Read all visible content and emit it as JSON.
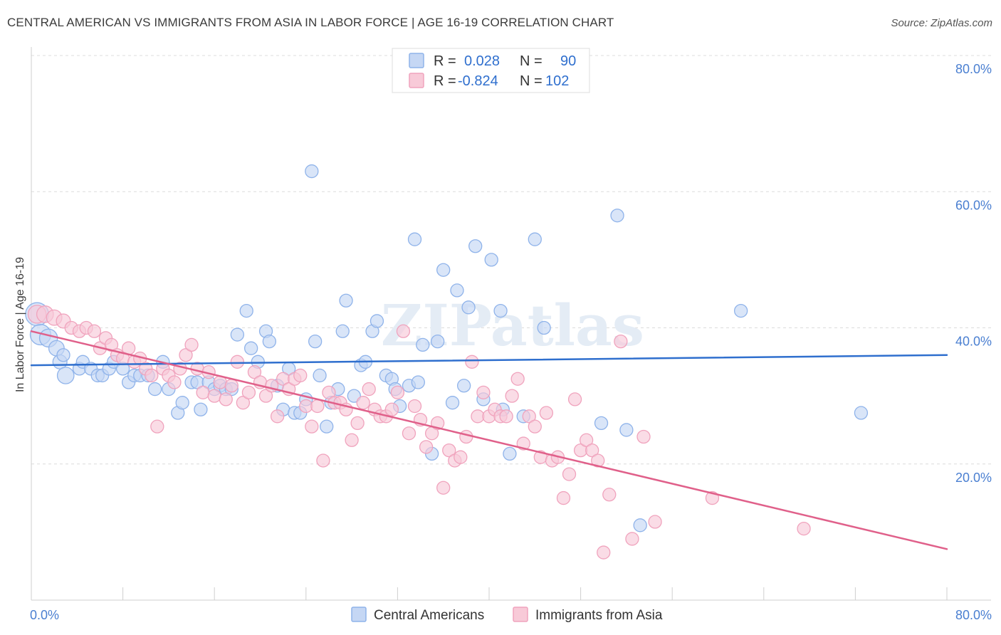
{
  "chart_data": {
    "type": "scatter",
    "title": "CENTRAL AMERICAN VS IMMIGRANTS FROM ASIA IN LABOR FORCE | AGE 16-19 CORRELATION CHART",
    "source": "Source: ZipAtlas.com",
    "ylabel": "In Labor Force | Age 16-19",
    "xlim": [
      0,
      80
    ],
    "ylim": [
      0,
      80
    ],
    "x_tick_labels": [
      "0.0%",
      "80.0%"
    ],
    "y_tick_labels": [
      "20.0%",
      "40.0%",
      "60.0%",
      "80.0%"
    ],
    "y_ticks": [
      20,
      40,
      60,
      80
    ],
    "watermark": "ZIPatlas",
    "legend": {
      "rows": [
        {
          "r_label": "R =",
          "r_value": "0.028",
          "n_label": "N =",
          "n_value": "90"
        },
        {
          "r_label": "R =",
          "r_value": "-0.824",
          "n_label": "N =",
          "n_value": "102"
        }
      ]
    },
    "series": [
      {
        "name": "Central Americans",
        "color": "#8fb3ea",
        "fill": "#c5d7f4",
        "line_color": "#2f6fce",
        "trend": {
          "x0": 0,
          "y0": 34.5,
          "x1": 80,
          "y1": 36.0
        },
        "points": [
          [
            0.5,
            42,
            1.8
          ],
          [
            0.8,
            39,
            1.6
          ],
          [
            1.5,
            38.5,
            1.4
          ],
          [
            2.2,
            37,
            1.2
          ],
          [
            2.5,
            35,
            1.1
          ],
          [
            2.8,
            36,
            1.0
          ],
          [
            3.0,
            33,
            1.3
          ],
          [
            4.2,
            34,
            1.0
          ],
          [
            4.5,
            35,
            1.0
          ],
          [
            5.2,
            34,
            1.0
          ],
          [
            5.8,
            33,
            1.0
          ],
          [
            6.2,
            33,
            1.0
          ],
          [
            6.8,
            34,
            1.0
          ],
          [
            7.2,
            35,
            1.0
          ],
          [
            8.0,
            34,
            1.0
          ],
          [
            8.5,
            32,
            1.0
          ],
          [
            9.0,
            33,
            1.0
          ],
          [
            9.5,
            33,
            1.0
          ],
          [
            10.2,
            33,
            1.0
          ],
          [
            10.8,
            31,
            1.0
          ],
          [
            11.5,
            35,
            1.0
          ],
          [
            12.0,
            31,
            1.0
          ],
          [
            12.8,
            27.5,
            1.0
          ],
          [
            13.2,
            29,
            1.0
          ],
          [
            14.0,
            32,
            1.0
          ],
          [
            14.5,
            32,
            1.0
          ],
          [
            14.8,
            28,
            1.0
          ],
          [
            15.5,
            32,
            1.0
          ],
          [
            16.0,
            31,
            1.0
          ],
          [
            16.5,
            31.5,
            1.0
          ],
          [
            17.0,
            31,
            1.0
          ],
          [
            17.5,
            31,
            1.0
          ],
          [
            18.0,
            39,
            1.0
          ],
          [
            18.8,
            42.5,
            1.0
          ],
          [
            19.2,
            37,
            1.0
          ],
          [
            19.8,
            35,
            1.0
          ],
          [
            20.5,
            39.5,
            1.0
          ],
          [
            20.8,
            38,
            1.0
          ],
          [
            21.5,
            31.5,
            1.0
          ],
          [
            22.0,
            28,
            1.0
          ],
          [
            22.5,
            34,
            1.0
          ],
          [
            23.0,
            27.5,
            1.0
          ],
          [
            23.5,
            27.5,
            1.0
          ],
          [
            24.0,
            29.5,
            1.0
          ],
          [
            24.5,
            63,
            1.0
          ],
          [
            24.8,
            38,
            1.0
          ],
          [
            25.2,
            33,
            1.0
          ],
          [
            25.8,
            25.5,
            1.0
          ],
          [
            26.2,
            29,
            1.0
          ],
          [
            26.8,
            31,
            1.0
          ],
          [
            27.2,
            39.5,
            1.0
          ],
          [
            27.5,
            44,
            1.0
          ],
          [
            28.2,
            30,
            1.0
          ],
          [
            28.8,
            34.5,
            1.0
          ],
          [
            29.2,
            35,
            1.0
          ],
          [
            29.8,
            39.5,
            1.0
          ],
          [
            30.2,
            41,
            1.0
          ],
          [
            31.0,
            33,
            1.0
          ],
          [
            31.5,
            32.5,
            1.0
          ],
          [
            31.8,
            31,
            1.0
          ],
          [
            32.2,
            28.5,
            1.0
          ],
          [
            33.0,
            31.5,
            1.0
          ],
          [
            33.5,
            53,
            1.0
          ],
          [
            33.8,
            32,
            1.0
          ],
          [
            34.2,
            37.5,
            1.0
          ],
          [
            35.0,
            21.5,
            1.0
          ],
          [
            35.5,
            38,
            1.0
          ],
          [
            36.0,
            48.5,
            1.0
          ],
          [
            36.8,
            29,
            1.0
          ],
          [
            37.2,
            45.5,
            1.0
          ],
          [
            37.8,
            31.5,
            1.0
          ],
          [
            38.2,
            43,
            1.0
          ],
          [
            38.8,
            52,
            1.0
          ],
          [
            39.5,
            29.5,
            1.0
          ],
          [
            40.2,
            50,
            1.0
          ],
          [
            41.0,
            42.5,
            1.0
          ],
          [
            41.2,
            28,
            1.0
          ],
          [
            41.8,
            21.5,
            1.0
          ],
          [
            43.0,
            27,
            1.0
          ],
          [
            44.0,
            53,
            1.0
          ],
          [
            44.8,
            40,
            1.0
          ],
          [
            49.8,
            26,
            1.0
          ],
          [
            51.2,
            56.5,
            1.0
          ],
          [
            52.0,
            25,
            1.0
          ],
          [
            53.2,
            11,
            1.0
          ],
          [
            62.0,
            42.5,
            1.0
          ],
          [
            72.5,
            27.5,
            1.0
          ]
        ]
      },
      {
        "name": "Immigrants from Asia",
        "color": "#f0a3bd",
        "fill": "#f8cad8",
        "line_color": "#e0608a",
        "trend": {
          "x0": 0,
          "y0": 39.5,
          "x1": 80,
          "y1": 7.5
        },
        "points": [
          [
            0.5,
            42,
            1.4
          ],
          [
            1.2,
            42,
            1.3
          ],
          [
            2.0,
            41.5,
            1.2
          ],
          [
            2.8,
            41,
            1.1
          ],
          [
            3.5,
            40,
            1.0
          ],
          [
            4.2,
            39.5,
            1.0
          ],
          [
            4.8,
            40,
            1.0
          ],
          [
            5.5,
            39.5,
            1.0
          ],
          [
            6.0,
            37,
            1.0
          ],
          [
            6.5,
            38.5,
            1.0
          ],
          [
            7.0,
            37.5,
            1.0
          ],
          [
            7.5,
            36,
            1.0
          ],
          [
            8.0,
            35.5,
            1.0
          ],
          [
            8.5,
            37,
            1.0
          ],
          [
            9.0,
            35,
            1.0
          ],
          [
            9.5,
            35.5,
            1.0
          ],
          [
            10.0,
            34,
            1.0
          ],
          [
            10.5,
            33,
            1.0
          ],
          [
            11.0,
            25.5,
            1.0
          ],
          [
            11.5,
            34,
            1.0
          ],
          [
            12.0,
            33,
            1.0
          ],
          [
            12.5,
            32,
            1.0
          ],
          [
            13.0,
            34,
            1.0
          ],
          [
            13.5,
            36,
            1.0
          ],
          [
            14.0,
            37.5,
            1.0
          ],
          [
            14.5,
            34,
            1.0
          ],
          [
            15.0,
            30.5,
            1.0
          ],
          [
            15.5,
            33.5,
            1.0
          ],
          [
            16.0,
            30,
            1.0
          ],
          [
            16.5,
            32,
            1.0
          ],
          [
            17.0,
            29.5,
            1.0
          ],
          [
            17.5,
            31.5,
            1.0
          ],
          [
            18.0,
            35,
            1.0
          ],
          [
            18.5,
            29,
            1.0
          ],
          [
            19.0,
            30.5,
            1.0
          ],
          [
            19.5,
            33.5,
            1.0
          ],
          [
            20.0,
            32,
            1.0
          ],
          [
            20.5,
            30,
            1.0
          ],
          [
            21.0,
            31.5,
            1.0
          ],
          [
            21.5,
            27,
            1.0
          ],
          [
            22.0,
            32.5,
            1.0
          ],
          [
            22.5,
            31,
            1.0
          ],
          [
            23.0,
            32.5,
            1.0
          ],
          [
            23.5,
            33,
            1.0
          ],
          [
            24.0,
            28.5,
            1.0
          ],
          [
            24.5,
            25.5,
            1.0
          ],
          [
            25.0,
            28.5,
            1.0
          ],
          [
            25.5,
            20.5,
            1.0
          ],
          [
            26.0,
            30.5,
            1.0
          ],
          [
            26.5,
            29,
            1.0
          ],
          [
            27.0,
            29,
            1.0
          ],
          [
            27.5,
            28,
            1.0
          ],
          [
            28.0,
            23.5,
            1.0
          ],
          [
            28.5,
            26,
            1.0
          ],
          [
            29.0,
            29,
            1.0
          ],
          [
            29.5,
            31,
            1.0
          ],
          [
            30.0,
            28,
            1.0
          ],
          [
            30.5,
            27,
            1.0
          ],
          [
            31.0,
            27,
            1.0
          ],
          [
            31.5,
            28,
            1.0
          ],
          [
            32.0,
            30.5,
            1.0
          ],
          [
            32.5,
            39.5,
            1.0
          ],
          [
            33.0,
            24.5,
            1.0
          ],
          [
            33.5,
            28.5,
            1.0
          ],
          [
            34.0,
            26.5,
            1.0
          ],
          [
            34.5,
            22.5,
            1.0
          ],
          [
            35.0,
            24.5,
            1.0
          ],
          [
            35.5,
            26,
            1.0
          ],
          [
            36.0,
            16.5,
            1.0
          ],
          [
            36.5,
            22,
            1.0
          ],
          [
            37.0,
            20.5,
            1.0
          ],
          [
            37.5,
            21,
            1.0
          ],
          [
            38.0,
            24,
            1.0
          ],
          [
            38.5,
            35,
            1.0
          ],
          [
            39.0,
            27,
            1.0
          ],
          [
            39.5,
            30.5,
            1.0
          ],
          [
            40.0,
            27,
            1.0
          ],
          [
            40.5,
            28,
            1.0
          ],
          [
            41.0,
            27,
            1.0
          ],
          [
            41.5,
            27,
            1.0
          ],
          [
            42.0,
            30,
            1.0
          ],
          [
            42.5,
            32.5,
            1.0
          ],
          [
            43.0,
            23,
            1.0
          ],
          [
            43.5,
            27,
            1.0
          ],
          [
            44.0,
            25.5,
            1.0
          ],
          [
            44.5,
            21,
            1.0
          ],
          [
            45.0,
            27.5,
            1.0
          ],
          [
            45.5,
            20.5,
            1.0
          ],
          [
            46.0,
            21,
            1.0
          ],
          [
            46.5,
            15,
            1.0
          ],
          [
            47.0,
            18.5,
            1.0
          ],
          [
            47.5,
            29.5,
            1.0
          ],
          [
            48.0,
            22,
            1.0
          ],
          [
            48.5,
            23.5,
            1.0
          ],
          [
            49.0,
            22,
            1.0
          ],
          [
            49.5,
            20.5,
            1.0
          ],
          [
            50.0,
            7,
            1.0
          ],
          [
            50.5,
            15.5,
            1.0
          ],
          [
            51.5,
            38,
            1.0
          ],
          [
            52.5,
            9,
            1.0
          ],
          [
            53.5,
            24,
            1.0
          ],
          [
            54.5,
            11.5,
            1.0
          ],
          [
            59.5,
            15,
            1.0
          ],
          [
            67.5,
            10.5,
            1.0
          ]
        ]
      }
    ]
  }
}
